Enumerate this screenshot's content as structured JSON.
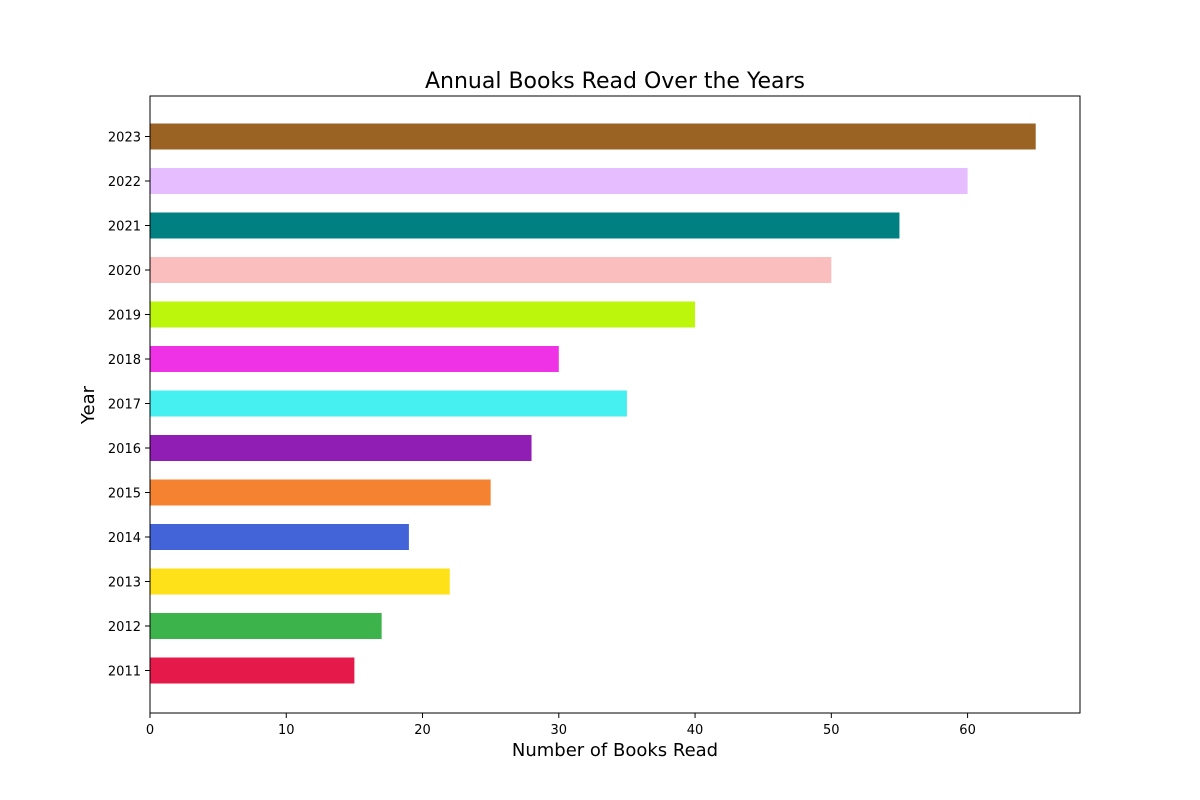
{
  "chart_data": {
    "type": "bar",
    "orientation": "horizontal",
    "title": "Annual Books Read Over the Years",
    "xlabel": "Number of Books Read",
    "ylabel": "Year",
    "categories": [
      "2011",
      "2012",
      "2013",
      "2014",
      "2015",
      "2016",
      "2017",
      "2018",
      "2019",
      "2020",
      "2021",
      "2022",
      "2023"
    ],
    "values": [
      15,
      17,
      22,
      19,
      25,
      28,
      35,
      30,
      40,
      50,
      55,
      60,
      65
    ],
    "colors": [
      "#e6194b",
      "#3cb44b",
      "#ffe119",
      "#4363d8",
      "#f58231",
      "#911eb4",
      "#46f0f0",
      "#f032e6",
      "#bcf60c",
      "#fabebe",
      "#008080",
      "#e6beff",
      "#9a6324"
    ],
    "xlim": [
      0,
      68.25
    ],
    "xticks": [
      "0",
      "10",
      "20",
      "30",
      "40",
      "50",
      "60"
    ],
    "grid": false,
    "legend": false
  }
}
